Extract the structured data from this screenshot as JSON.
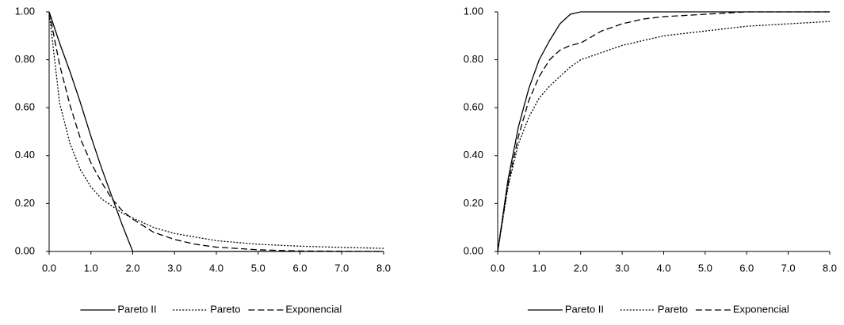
{
  "chart_data": [
    {
      "type": "line",
      "x": [
        0,
        0.25,
        0.5,
        0.75,
        1,
        1.25,
        1.5,
        1.75,
        2,
        2.5,
        3,
        3.5,
        4,
        5,
        6,
        7,
        8
      ],
      "series": [
        {
          "name": "Pareto II",
          "color": "#000000",
          "dash": "solid",
          "values": [
            1,
            0.87,
            0.75,
            0.62,
            0.48,
            0.35,
            0.23,
            0.11,
            0,
            0,
            0,
            0,
            0,
            0,
            0,
            0,
            0
          ]
        },
        {
          "name": "Pareto",
          "color": "#000000",
          "dash": "dotted",
          "values": [
            1,
            0.62,
            0.45,
            0.34,
            0.27,
            0.22,
            0.19,
            0.16,
            0.14,
            0.1,
            0.075,
            0.06,
            0.045,
            0.03,
            0.022,
            0.017,
            0.013
          ]
        },
        {
          "name": "Exponencial",
          "color": "#000000",
          "dash": "dashed",
          "values": [
            1,
            0.78,
            0.61,
            0.47,
            0.37,
            0.29,
            0.22,
            0.17,
            0.135,
            0.08,
            0.05,
            0.03,
            0.018,
            0.007,
            0.002,
            0.001,
            0
          ]
        }
      ],
      "xlim": [
        0,
        8
      ],
      "xticks": [
        {
          "value": 0,
          "label": "0.0"
        },
        {
          "value": 1,
          "label": "1.0"
        },
        {
          "value": 2,
          "label": "2.0"
        },
        {
          "value": 3,
          "label": "3.0"
        },
        {
          "value": 4,
          "label": "4.0"
        },
        {
          "value": 5,
          "label": "5.0"
        },
        {
          "value": 6,
          "label": "6.0"
        },
        {
          "value": 7,
          "label": "7.0"
        },
        {
          "value": 8,
          "label": "8.0"
        }
      ],
      "ylim": [
        0,
        1
      ],
      "yticks": [
        {
          "value": 0,
          "label": "0.00"
        },
        {
          "value": 0.2,
          "label": "0.20"
        },
        {
          "value": 0.4,
          "label": "0.40"
        },
        {
          "value": 0.6,
          "label": "0.60"
        },
        {
          "value": 0.8,
          "label": "0.80"
        },
        {
          "value": 1,
          "label": "1.00"
        }
      ],
      "grid": false,
      "legend": "bottom"
    },
    {
      "type": "line",
      "x": [
        0,
        0.25,
        0.5,
        0.75,
        1,
        1.25,
        1.5,
        1.75,
        2,
        2.5,
        3,
        3.5,
        4,
        5,
        6,
        7,
        8
      ],
      "series": [
        {
          "name": "Pareto II",
          "color": "#000000",
          "dash": "solid",
          "values": [
            0,
            0.3,
            0.52,
            0.68,
            0.8,
            0.88,
            0.95,
            0.99,
            1,
            1,
            1,
            1,
            1,
            1,
            1,
            1,
            1
          ]
        },
        {
          "name": "Pareto",
          "color": "#000000",
          "dash": "dotted",
          "values": [
            0,
            0.27,
            0.45,
            0.56,
            0.64,
            0.69,
            0.73,
            0.77,
            0.8,
            0.83,
            0.86,
            0.88,
            0.9,
            0.92,
            0.94,
            0.95,
            0.96
          ]
        },
        {
          "name": "Exponencial",
          "color": "#000000",
          "dash": "dashed",
          "values": [
            0,
            0.28,
            0.48,
            0.63,
            0.73,
            0.8,
            0.84,
            0.86,
            0.87,
            0.92,
            0.95,
            0.97,
            0.98,
            0.99,
            1,
            1,
            1
          ]
        }
      ],
      "xlim": [
        0,
        8
      ],
      "xticks": [
        {
          "value": 0,
          "label": "0.0"
        },
        {
          "value": 1,
          "label": "1.0"
        },
        {
          "value": 2,
          "label": "2.0"
        },
        {
          "value": 3,
          "label": "3.0"
        },
        {
          "value": 4,
          "label": "4.0"
        },
        {
          "value": 5,
          "label": "5.0"
        },
        {
          "value": 6,
          "label": "6.0"
        },
        {
          "value": 7,
          "label": "7.0"
        },
        {
          "value": 8,
          "label": "8.0"
        }
      ],
      "ylim": [
        0,
        1
      ],
      "yticks": [
        {
          "value": 0,
          "label": "0.00"
        },
        {
          "value": 0.2,
          "label": "0.20"
        },
        {
          "value": 0.4,
          "label": "0.40"
        },
        {
          "value": 0.6,
          "label": "0.60"
        },
        {
          "value": 0.8,
          "label": "0.80"
        },
        {
          "value": 1,
          "label": "1.00"
        }
      ],
      "grid": false,
      "legend": "bottom"
    }
  ]
}
